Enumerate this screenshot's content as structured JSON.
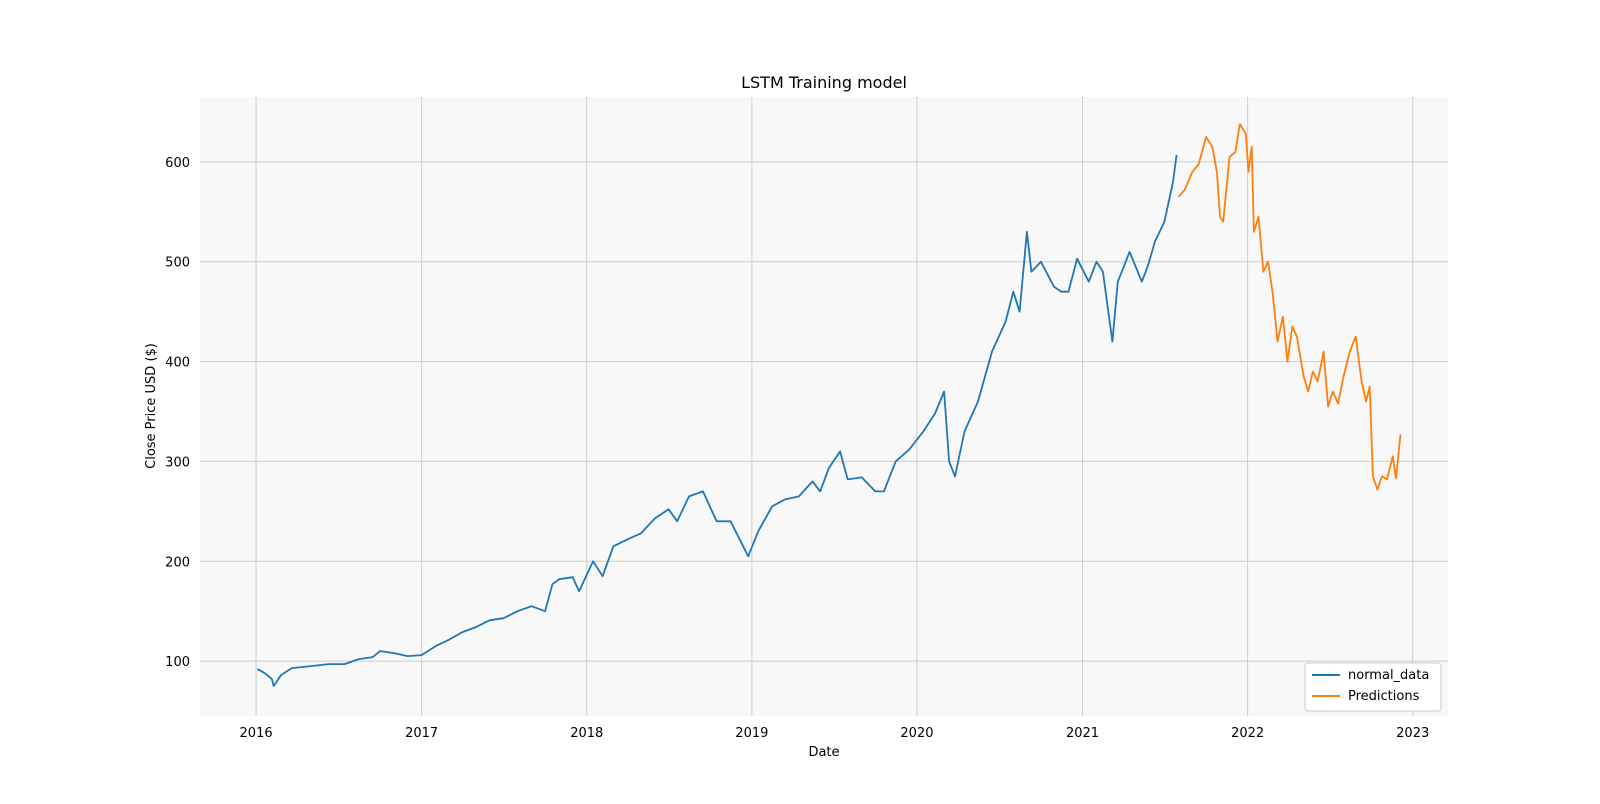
{
  "chart_data": {
    "type": "line",
    "title": "LSTM  Training model",
    "xlabel": "Date",
    "ylabel": "Close Price USD ($)",
    "xlim": [
      "2015-08-30",
      "2023-03-20"
    ],
    "ylim": [
      45,
      665
    ],
    "grid": true,
    "legend_position": "bottom-right",
    "x_ticks": [
      "2016",
      "2017",
      "2018",
      "2019",
      "2020",
      "2021",
      "2022",
      "2023"
    ],
    "y_ticks": [
      100,
      200,
      300,
      400,
      500,
      600
    ],
    "series": [
      {
        "name": "normal_data",
        "color": "#1f77b4",
        "points": [
          [
            "2016-01-04",
            92
          ],
          [
            "2016-01-20",
            88
          ],
          [
            "2016-02-05",
            82
          ],
          [
            "2016-02-09",
            75
          ],
          [
            "2016-02-25",
            86
          ],
          [
            "2016-03-20",
            93
          ],
          [
            "2016-05-01",
            95
          ],
          [
            "2016-06-10",
            97
          ],
          [
            "2016-07-15",
            97
          ],
          [
            "2016-08-15",
            102
          ],
          [
            "2016-09-15",
            104
          ],
          [
            "2016-10-01",
            110
          ],
          [
            "2016-11-01",
            108
          ],
          [
            "2016-12-01",
            105
          ],
          [
            "2017-01-01",
            106
          ],
          [
            "2017-02-01",
            115
          ],
          [
            "2017-03-01",
            121
          ],
          [
            "2017-04-01",
            129
          ],
          [
            "2017-05-01",
            134
          ],
          [
            "2017-06-01",
            141
          ],
          [
            "2017-07-01",
            143
          ],
          [
            "2017-08-01",
            150
          ],
          [
            "2017-09-01",
            155
          ],
          [
            "2017-10-01",
            150
          ],
          [
            "2017-10-17",
            177
          ],
          [
            "2017-11-01",
            182
          ],
          [
            "2017-12-01",
            184
          ],
          [
            "2017-12-15",
            170
          ],
          [
            "2018-01-15",
            200
          ],
          [
            "2018-02-05",
            185
          ],
          [
            "2018-03-01",
            215
          ],
          [
            "2018-04-01",
            222
          ],
          [
            "2018-05-01",
            228
          ],
          [
            "2018-06-01",
            243
          ],
          [
            "2018-07-01",
            252
          ],
          [
            "2018-07-20",
            240
          ],
          [
            "2018-08-15",
            265
          ],
          [
            "2018-09-15",
            270
          ],
          [
            "2018-10-15",
            240
          ],
          [
            "2018-11-15",
            240
          ],
          [
            "2018-12-24",
            205
          ],
          [
            "2019-01-15",
            230
          ],
          [
            "2019-02-15",
            255
          ],
          [
            "2019-03-15",
            262
          ],
          [
            "2019-04-15",
            265
          ],
          [
            "2019-05-15",
            280
          ],
          [
            "2019-06-01",
            270
          ],
          [
            "2019-06-20",
            293
          ],
          [
            "2019-07-15",
            310
          ],
          [
            "2019-08-01",
            282
          ],
          [
            "2019-09-01",
            284
          ],
          [
            "2019-10-01",
            270
          ],
          [
            "2019-10-20",
            270
          ],
          [
            "2019-11-15",
            300
          ],
          [
            "2019-12-15",
            312
          ],
          [
            "2020-01-15",
            330
          ],
          [
            "2020-02-10",
            348
          ],
          [
            "2020-03-01",
            370
          ],
          [
            "2020-03-12",
            300
          ],
          [
            "2020-03-25",
            285
          ],
          [
            "2020-04-15",
            330
          ],
          [
            "2020-05-15",
            360
          ],
          [
            "2020-06-15",
            410
          ],
          [
            "2020-07-15",
            440
          ],
          [
            "2020-08-01",
            470
          ],
          [
            "2020-08-15",
            450
          ],
          [
            "2020-08-31",
            530
          ],
          [
            "2020-09-10",
            490
          ],
          [
            "2020-10-01",
            500
          ],
          [
            "2020-10-30",
            475
          ],
          [
            "2020-11-15",
            470
          ],
          [
            "2020-12-01",
            470
          ],
          [
            "2020-12-20",
            503
          ],
          [
            "2021-01-15",
            480
          ],
          [
            "2021-02-01",
            500
          ],
          [
            "2021-02-15",
            490
          ],
          [
            "2021-03-08",
            420
          ],
          [
            "2021-03-20",
            480
          ],
          [
            "2021-04-15",
            510
          ],
          [
            "2021-05-12",
            480
          ],
          [
            "2021-05-25",
            495
          ],
          [
            "2021-06-10",
            520
          ],
          [
            "2021-07-01",
            540
          ],
          [
            "2021-07-20",
            580
          ],
          [
            "2021-07-28",
            607
          ]
        ]
      },
      {
        "name": "Predictions",
        "color": "#ff7f0e",
        "points": [
          [
            "2021-08-01",
            565
          ],
          [
            "2021-08-15",
            572
          ],
          [
            "2021-09-01",
            590
          ],
          [
            "2021-09-15",
            598
          ],
          [
            "2021-10-01",
            625
          ],
          [
            "2021-10-15",
            615
          ],
          [
            "2021-10-25",
            590
          ],
          [
            "2021-11-01",
            545
          ],
          [
            "2021-11-08",
            540
          ],
          [
            "2021-11-22",
            605
          ],
          [
            "2021-12-05",
            610
          ],
          [
            "2021-12-15",
            638
          ],
          [
            "2021-12-28",
            628
          ],
          [
            "2022-01-03",
            590
          ],
          [
            "2022-01-10",
            615
          ],
          [
            "2022-01-15",
            530
          ],
          [
            "2022-01-25",
            545
          ],
          [
            "2022-02-05",
            490
          ],
          [
            "2022-02-15",
            500
          ],
          [
            "2022-02-25",
            470
          ],
          [
            "2022-03-08",
            420
          ],
          [
            "2022-03-20",
            445
          ],
          [
            "2022-03-30",
            400
          ],
          [
            "2022-04-10",
            435
          ],
          [
            "2022-04-20",
            425
          ],
          [
            "2022-05-05",
            385
          ],
          [
            "2022-05-15",
            370
          ],
          [
            "2022-05-25",
            390
          ],
          [
            "2022-06-05",
            380
          ],
          [
            "2022-06-18",
            410
          ],
          [
            "2022-06-28",
            355
          ],
          [
            "2022-07-08",
            370
          ],
          [
            "2022-07-20",
            358
          ],
          [
            "2022-08-01",
            385
          ],
          [
            "2022-08-15",
            410
          ],
          [
            "2022-08-28",
            425
          ],
          [
            "2022-09-10",
            380
          ],
          [
            "2022-09-20",
            360
          ],
          [
            "2022-09-28",
            375
          ],
          [
            "2022-10-05",
            285
          ],
          [
            "2022-10-15",
            272
          ],
          [
            "2022-10-25",
            285
          ],
          [
            "2022-11-05",
            282
          ],
          [
            "2022-11-18",
            305
          ],
          [
            "2022-11-25",
            283
          ],
          [
            "2022-12-05",
            327
          ]
        ]
      }
    ]
  },
  "colors": {
    "plot_background": "#f8f8f8",
    "grid": "#cccccc",
    "legend_border": "#cccccc"
  }
}
